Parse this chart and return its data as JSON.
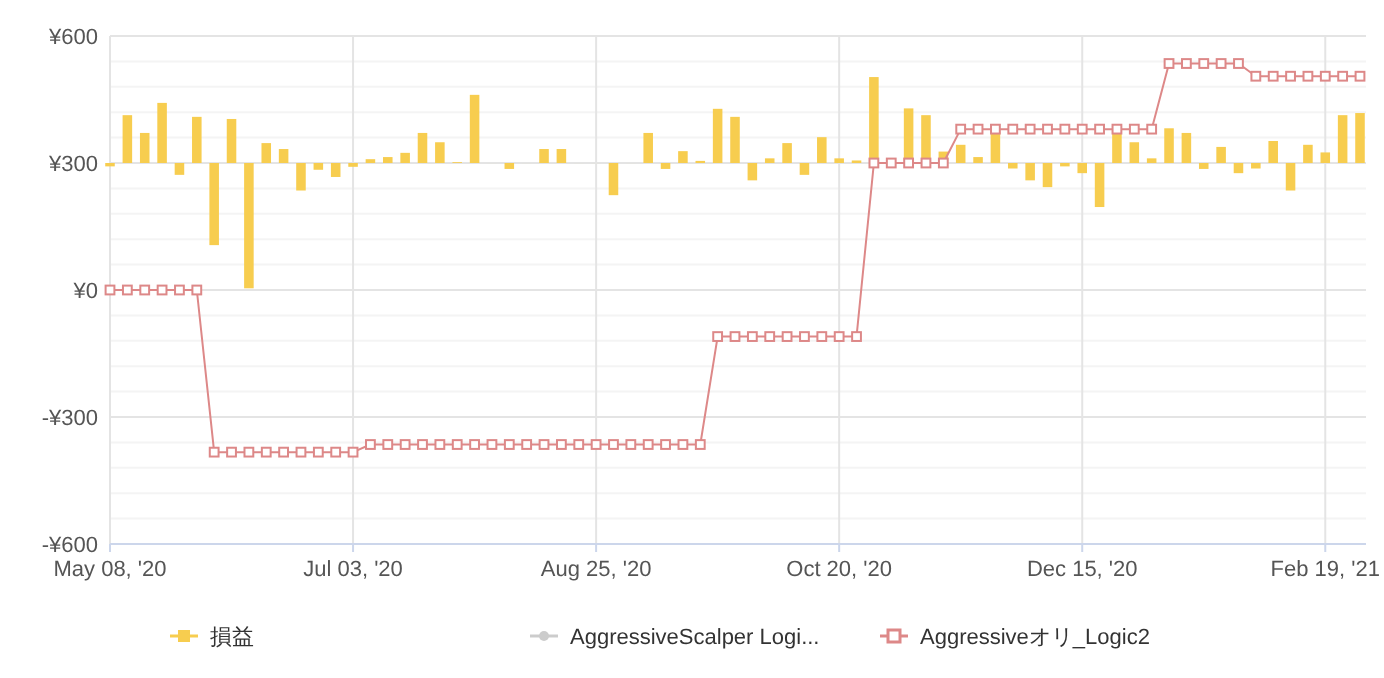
{
  "chart_data": {
    "type": "bar",
    "categories": [
      "May 08, '20",
      null,
      null,
      null,
      null,
      null,
      null,
      null,
      null,
      null,
      null,
      null,
      null,
      null,
      "Jul 03, '20",
      null,
      null,
      null,
      null,
      null,
      null,
      null,
      null,
      null,
      null,
      null,
      null,
      null,
      "Aug 25, '20",
      null,
      null,
      null,
      null,
      null,
      null,
      null,
      null,
      null,
      null,
      null,
      null,
      null,
      "Oct 20, '20",
      null,
      null,
      null,
      null,
      null,
      null,
      null,
      null,
      null,
      null,
      null,
      null,
      null,
      "Dec 15, '20",
      null,
      null,
      null,
      null,
      null,
      null,
      null,
      null,
      null,
      null,
      null,
      null,
      null,
      "Feb 19, '21",
      null,
      null
    ],
    "series": [
      {
        "name": "損益",
        "color": "#f7cd4f",
        "base": [
          300,
          300,
          300,
          300,
          300,
          300,
          300,
          300,
          300,
          300,
          300,
          300,
          300,
          300,
          300,
          300,
          300,
          300,
          300,
          300,
          300,
          300,
          300,
          300,
          300,
          300,
          300,
          300,
          300,
          300,
          300,
          300,
          300,
          300,
          300,
          300,
          300,
          300,
          300,
          300,
          300,
          300,
          300,
          300,
          300,
          300,
          300,
          300,
          300,
          300,
          300,
          300,
          300,
          300,
          300,
          300,
          300,
          300,
          300,
          300,
          300,
          300,
          300,
          300,
          300,
          300,
          300,
          300,
          300,
          300,
          300,
          300,
          300
        ],
        "values": [
          -8,
          113,
          71,
          142,
          -28,
          109,
          -194,
          104,
          -296,
          47,
          33,
          -65,
          -16,
          -33,
          -9,
          9,
          14,
          24,
          71,
          49,
          2,
          161,
          0,
          -14,
          0,
          33,
          33,
          0,
          0,
          -76,
          0,
          71,
          -14,
          28,
          5,
          128,
          109,
          -41,
          11,
          47,
          -28,
          61,
          11,
          6,
          203,
          0,
          129,
          113,
          27,
          43,
          14,
          74,
          -13,
          -41,
          -57,
          -8,
          -24,
          -104,
          74,
          49,
          11,
          82,
          71,
          -14,
          38,
          -24,
          -13,
          52,
          -65,
          43,
          25,
          113,
          118
        ]
      },
      {
        "name": "AggressiveScalper Logi...",
        "type": "line",
        "color": "#cccccc",
        "values": [
          null,
          null,
          null,
          null,
          null,
          null,
          null,
          null,
          null,
          null,
          null,
          null,
          null,
          null,
          null,
          null,
          null,
          null,
          null,
          null,
          null,
          null,
          null,
          null,
          null,
          null,
          null,
          null,
          null,
          null,
          null,
          null,
          null,
          null,
          null,
          null,
          null,
          null,
          null,
          null,
          null,
          null,
          null,
          null,
          null,
          null,
          null,
          null,
          null,
          null,
          null,
          null,
          null,
          null,
          null,
          null,
          null,
          null,
          null,
          null,
          null,
          null,
          null,
          null,
          null,
          null,
          null,
          null,
          null,
          null,
          null,
          null,
          null
        ]
      },
      {
        "name": "Aggressiveオリ_Logic2",
        "type": "line",
        "color": "#dd8888",
        "marker": "square",
        "line_style": "solid",
        "values": [
          0,
          0,
          0,
          0,
          0,
          0,
          -383,
          -383,
          -383,
          -383,
          -383,
          -383,
          -383,
          -383,
          -383,
          -365,
          -365,
          -365,
          -365,
          -365,
          -365,
          -365,
          -365,
          -365,
          -365,
          -365,
          -365,
          -365,
          -365,
          -365,
          -365,
          -365,
          -365,
          -365,
          -365,
          -110,
          -110,
          -110,
          -110,
          -110,
          -110,
          -110,
          -110,
          -110,
          300,
          300,
          300,
          300,
          300,
          380,
          380,
          380,
          380,
          380,
          380,
          380,
          380,
          380,
          380,
          380,
          380,
          535,
          535,
          535,
          535,
          535,
          505,
          505,
          505,
          505,
          505,
          505,
          505
        ]
      }
    ],
    "ylim": [
      -600,
      600
    ],
    "yticks": [
      {
        "value": -600,
        "label": "-¥600"
      },
      {
        "value": -540,
        "label": null
      },
      {
        "value": -480,
        "label": null
      },
      {
        "value": -420,
        "label": null
      },
      {
        "value": -360,
        "label": null
      },
      {
        "value": -300,
        "label": "-¥300"
      },
      {
        "value": -240,
        "label": null
      },
      {
        "value": -180,
        "label": null
      },
      {
        "value": -120,
        "label": null
      },
      {
        "value": -60,
        "label": null
      },
      {
        "value": 0,
        "label": "¥0"
      },
      {
        "value": 60,
        "label": null
      },
      {
        "value": 120,
        "label": null
      },
      {
        "value": 180,
        "label": null
      },
      {
        "value": 240,
        "label": null
      },
      {
        "value": 300,
        "label": "¥300"
      },
      {
        "value": 360,
        "label": null
      },
      {
        "value": 420,
        "label": null
      },
      {
        "value": 480,
        "label": null
      },
      {
        "value": 540,
        "label": null
      },
      {
        "value": 600,
        "label": "¥600"
      }
    ],
    "grid": true,
    "legend": "bottom"
  }
}
